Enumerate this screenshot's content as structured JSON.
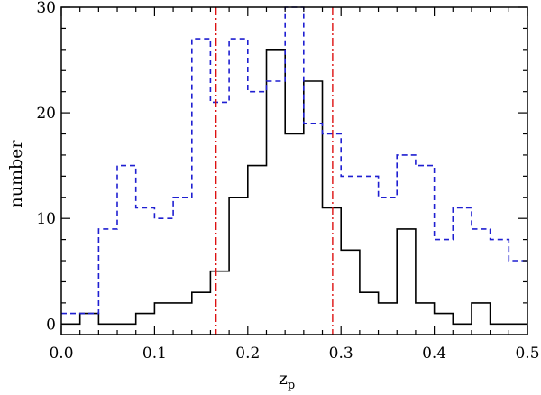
{
  "chart_data": {
    "type": "histogram",
    "xlabel_main": "z",
    "xlabel_sub": "p",
    "ylabel": "number",
    "xlim": [
      0.0,
      0.5
    ],
    "ylim": [
      -1,
      30
    ],
    "bin_width": 0.02,
    "bin_starts": [
      0.0,
      0.02,
      0.04,
      0.06,
      0.08,
      0.1,
      0.12,
      0.14,
      0.16,
      0.18,
      0.2,
      0.22,
      0.24,
      0.26,
      0.28,
      0.3,
      0.32,
      0.34,
      0.36,
      0.38,
      0.4,
      0.42,
      0.44,
      0.46,
      0.48
    ],
    "x_ticks": [
      0.0,
      0.1,
      0.2,
      0.3,
      0.4,
      0.5
    ],
    "x_tick_labels": [
      "0.0",
      "0.1",
      "0.2",
      "0.3",
      "0.4",
      "0.5"
    ],
    "y_ticks": [
      0,
      10,
      20,
      30
    ],
    "y_tick_labels": [
      "0",
      "10",
      "20",
      "30"
    ],
    "series": [
      {
        "style": "solid",
        "color": "#000000",
        "values": [
          0,
          1,
          0,
          0,
          1,
          2,
          2,
          3,
          5,
          12,
          15,
          26,
          18,
          23,
          11,
          7,
          3,
          2,
          9,
          2,
          1,
          0,
          2,
          0,
          0
        ]
      },
      {
        "style": "dashed",
        "color": "#1f1fd1",
        "values": [
          1,
          1,
          9,
          15,
          11,
          10,
          12,
          27,
          21,
          27,
          22,
          23,
          30,
          19,
          18,
          14,
          14,
          12,
          16,
          15,
          8,
          11,
          9,
          8,
          6
        ]
      }
    ],
    "vlines": [
      {
        "x": 0.166,
        "color": "#dd1111",
        "style": "dashdot"
      },
      {
        "x": 0.291,
        "color": "#dd1111",
        "style": "dashdot"
      }
    ]
  }
}
